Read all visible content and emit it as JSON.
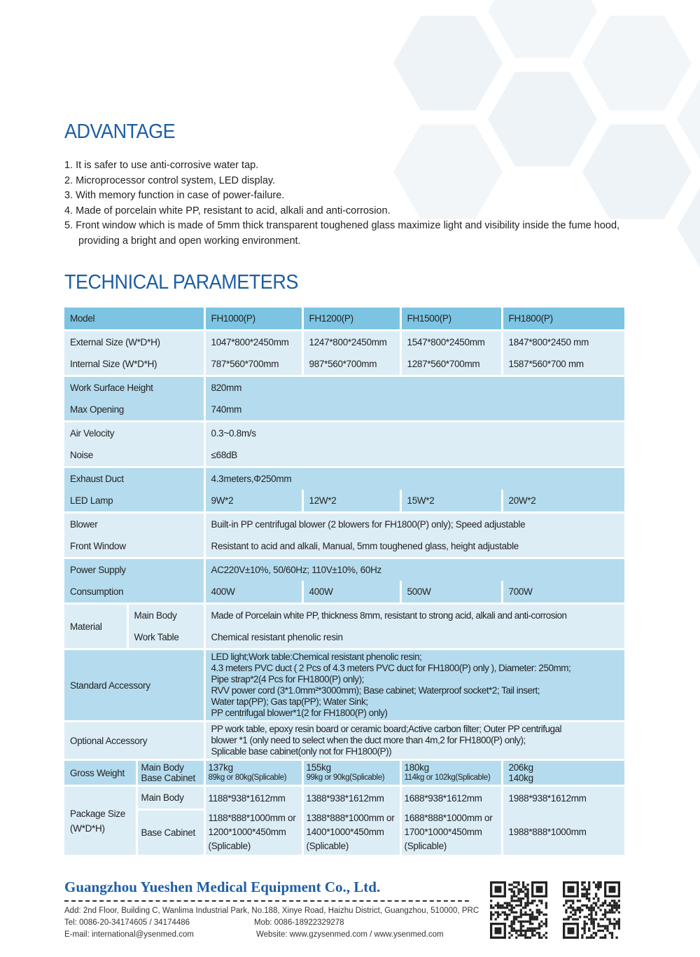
{
  "advantage": {
    "title": "ADVANTAGE",
    "items": [
      "1. It is safer to use anti-corrosive water tap.",
      "2. Microprocessor control system, LED display.",
      "3. With memory function in case of power-failure.",
      "4. Made of porcelain white PP, resistant to acid, alkali and anti-corrosion.",
      "5. Front window which is made of 5mm thick transparent toughened glass maximize light and visibility inside the fume hood, providing a bright and open working environment."
    ]
  },
  "technical": {
    "title": "TECHNICAL PARAMETERS",
    "model_label": "Model",
    "models": [
      "FH1000(P)",
      "FH1200(P)",
      "FH1500(P)",
      "FH1800(P)"
    ],
    "external_label": "External Size (W*D*H)",
    "external": [
      "1047*800*2450mm",
      "1247*800*2450mm",
      "1547*800*2450mm",
      "1847*800*2450 mm"
    ],
    "internal_label": "Internal Size (W*D*H)",
    "internal": [
      "787*560*700mm",
      "987*560*700mm",
      "1287*560*700mm",
      "1587*560*700 mm"
    ],
    "work_surface_label": "Work Surface Height",
    "work_surface": "820mm",
    "max_opening_label": "Max Opening",
    "max_opening": "740mm",
    "air_velocity_label": "Air Velocity",
    "air_velocity": "0.3~0.8m/s",
    "noise_label": "Noise",
    "noise": "≤68dB",
    "exhaust_label": "Exhaust Duct",
    "exhaust": "4.3meters,Φ250mm",
    "led_label": "LED Lamp",
    "led": [
      "9W*2",
      "12W*2",
      "15W*2",
      "20W*2"
    ],
    "blower_label": "Blower",
    "blower": "Built-in PP centrifugal blower (2 blowers for FH1800(P) only); Speed adjustable",
    "front_label": "Front Window",
    "front": "Resistant to acid and alkali, Manual, 5mm toughened glass, height adjustable",
    "power_label": "Power Supply",
    "power": "AC220V±10%, 50/60Hz; 110V±10%, 60Hz",
    "consumption_label": "Consumption",
    "consumption": [
      "400W",
      "400W",
      "500W",
      "700W"
    ],
    "material_label": "Material",
    "material_main_label": "Main Body",
    "material_main": "Made of  Porcelain white PP, thickness 8mm, resistant to strong acid, alkali and anti-corrosion",
    "material_table_label": "Work Table",
    "material_table": "Chemical resistant phenolic resin",
    "standard_label": "Standard Accessory",
    "standard": [
      "LED light;Work table:Chemical resistant phenolic resin;",
      "4.3 meters PVC duct ( 2 Pcs of 4.3 meters PVC duct for FH1800(P) only ), Diameter: 250mm;",
      "Pipe strap*2(4 Pcs for FH1800(P) only);",
      "RVV power cord (3*1.0mm²*3000mm); Base cabinet; Waterproof socket*2; Tail insert;",
      "Water tap(PP); Gas tap(PP); Water Sink;",
      "PP centrifugal blower*1(2 for FH1800(P) only)"
    ],
    "optional_label": "Optional Accessory",
    "optional": [
      "PP work table, epoxy resin board or ceramic board;Active carbon filter; Outer PP centrifugal",
      "blower *1 (only need to select when the duct more than 4m,2 for FH1800(P) only);",
      "Splicable base cabinet(only not for FH1800(P))"
    ],
    "gross_label": "Gross Weight",
    "gross_sub1": "Main Body",
    "gross_sub2": "Base Cabinet",
    "gross_main": [
      "137kg",
      "155kg",
      "180kg",
      "206kg"
    ],
    "gross_base": [
      "89kg or 80kg(Splicable)",
      "99kg or 90kg(Splicable)",
      "114kg or 102kg(Splicable)",
      "140kg"
    ],
    "package_label1": "Package Size",
    "package_label2": "(W*D*H)",
    "package_main_label": "Main Body",
    "package_main": [
      "1188*938*1612mm",
      "1388*938*1612mm",
      "1688*938*1612mm",
      "1988*938*1612mm"
    ],
    "package_base_label": "Base Cabinet",
    "package_base": [
      [
        "1188*888*1000mm or",
        "1200*1000*450mm",
        "(Splicable)"
      ],
      [
        "1388*888*1000mm or",
        "1400*1000*450mm",
        "(Splicable)"
      ],
      [
        "1688*888*1000mm or",
        "1700*1000*450mm",
        "(Splicable)"
      ],
      [
        "1988*888*1000mm"
      ]
    ]
  },
  "footer": {
    "company": "Guangzhou Yueshen Medical Equipment Co., Ltd.",
    "address": "Add: 2nd Floor, Building C, Wanlima Industrial Park, No.188, Xinye Road, Haizhu District, Guangzhou, 510000, PRC",
    "tel": "Tel: 0086-20-34174605 / 34174486",
    "mob": "Mob: 0086-18922329278",
    "email": "E-mail: international@ysenmed.com",
    "website": "Website: www.gzysenmed.com / www.ysenmed.com"
  },
  "colors": {
    "title": "#1d5ea5",
    "header": "#7cc4e2",
    "row_light": "#dcedf6",
    "row_mid": "#b5dcee",
    "hexagon": "#eef3f8"
  }
}
